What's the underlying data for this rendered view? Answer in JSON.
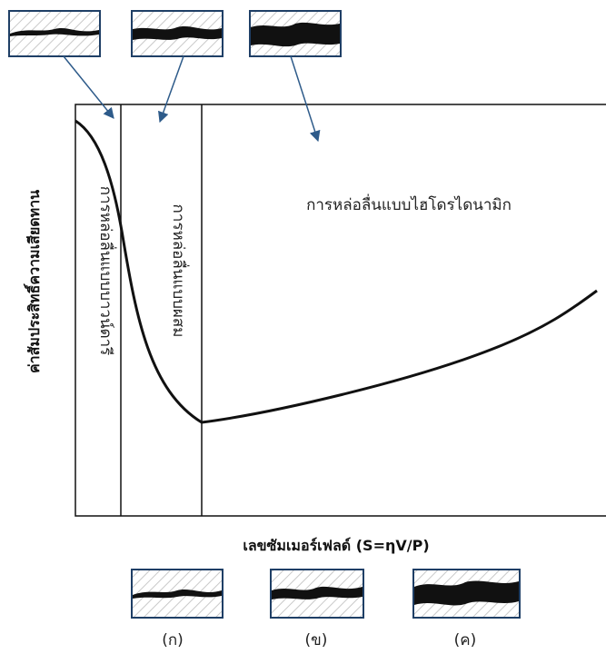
{
  "y_axis_label": "ค่าสัมประสิทธิ์ความเสียดทาน",
  "x_axis_label": "เลขซัมเมอร์เฟลด์ (S=ηV/P)",
  "regions": [
    {
      "label": "การหล่อลื่นแบบบาวน์ดารี"
    },
    {
      "label": "การหล่อลื่นแบบผสม"
    },
    {
      "label": "การหล่อลื่นแบบไฮโดรไดนามิก"
    }
  ],
  "bottom_labels": [
    "(ก)",
    "(ข)",
    "(ค)"
  ]
}
